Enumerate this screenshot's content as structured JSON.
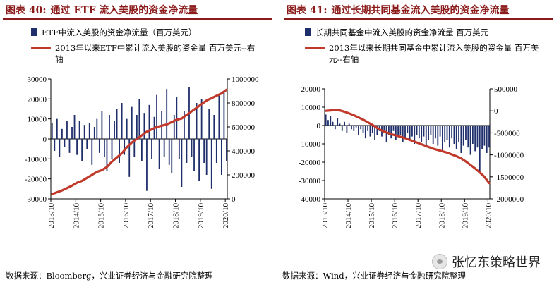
{
  "left": {
    "title_num": "图表 40:",
    "title": "通过 ETF 流入美股的资金净流量",
    "legend_bar": "ETF中流入美股的资金净流量（百万美元）",
    "legend_line": "2013年以来ETF中累计流入美股的资金量 百万美元--右轴",
    "source": "数据来源：Bloomberg，兴业证券经济与金融研究院整理"
  },
  "right": {
    "title_num": "图表 41:",
    "title": "通过长期共同基金流入美股的资金净流量",
    "legend_bar": "长期共同基金中流入美股的资金净流量 百万美元",
    "legend_line": "2013年以来长期共同基金中累计流入美股的资金量 百万美元--右轴",
    "source": "数据来源：Wind，兴业证券经济与金融研究院整理"
  },
  "watermark": {
    "text": "张忆东策略世界",
    "icon": "wechat-icon"
  },
  "colors": {
    "bar": "#1f2f6b",
    "line": "#c0392b",
    "title": "#8b1a1a"
  },
  "chart_data": [
    {
      "type": "bar+line",
      "title": "通过 ETF 流入美股的资金净流量",
      "x_ticks": [
        "2013/10",
        "2014/10",
        "2015/10",
        "2016/10",
        "2017/10",
        "2018/10",
        "2019/10",
        "2020/10"
      ],
      "x_range": [
        2013.75,
        2020.83
      ],
      "y_left": {
        "min": -30000,
        "max": 30000,
        "ticks": [
          -30000,
          -20000,
          -10000,
          0,
          10000,
          20000,
          30000
        ],
        "labels": [
          "-30000",
          "-20000",
          "-10000",
          "0",
          "10000",
          "20000",
          "30000"
        ]
      },
      "y_right": {
        "min": 0,
        "max": 1000000,
        "ticks": [
          0,
          200000,
          400000,
          600000,
          800000,
          1000000
        ],
        "labels": [
          "0",
          "200000",
          "400000",
          "600000",
          "800000",
          "1000000"
        ]
      },
      "grid": false,
      "legend_position": "top",
      "bar_series": {
        "name": "ETF中流入美股的资金净流量（百万美元）",
        "x": [
          2013.8,
          2013.9,
          2014.0,
          2014.1,
          2014.2,
          2014.3,
          2014.4,
          2014.5,
          2014.6,
          2014.7,
          2014.8,
          2014.9,
          2015.0,
          2015.1,
          2015.2,
          2015.3,
          2015.4,
          2015.5,
          2015.6,
          2015.7,
          2015.8,
          2015.9,
          2016.0,
          2016.1,
          2016.2,
          2016.3,
          2016.4,
          2016.5,
          2016.6,
          2016.7,
          2016.8,
          2016.9,
          2017.0,
          2017.1,
          2017.2,
          2017.3,
          2017.4,
          2017.5,
          2017.6,
          2017.7,
          2017.8,
          2017.9,
          2018.0,
          2018.1,
          2018.2,
          2018.3,
          2018.4,
          2018.5,
          2018.6,
          2018.7,
          2018.8,
          2018.9,
          2019.0,
          2019.1,
          2019.2,
          2019.3,
          2019.4,
          2019.5,
          2019.6,
          2019.7,
          2019.8,
          2019.9,
          2020.0,
          2020.1,
          2020.2,
          2020.3,
          2020.4,
          2020.5,
          2020.6,
          2020.7,
          2020.8
        ],
        "values": [
          8000,
          -6000,
          10000,
          -9000,
          5000,
          -4000,
          9000,
          -7000,
          6000,
          12000,
          -8000,
          9000,
          -11000,
          7000,
          -5000,
          8000,
          -13000,
          6000,
          10000,
          -7000,
          14000,
          -9000,
          -16000,
          12000,
          -10000,
          9000,
          15000,
          -12000,
          18000,
          -8000,
          10000,
          -19000,
          16000,
          -9000,
          12000,
          20000,
          -11000,
          13000,
          -26000,
          17000,
          -10000,
          11000,
          22000,
          -15000,
          14000,
          -9000,
          25000,
          -13000,
          -17000,
          12000,
          21000,
          -10000,
          -24000,
          14000,
          -12000,
          26000,
          -9000,
          -16000,
          18000,
          -21000,
          20000,
          -12000,
          -18000,
          15000,
          -25000,
          12000,
          -12000,
          22000,
          -18000,
          24000,
          -11000
        ]
      },
      "line_series": {
        "name": "2013年以来ETF中累计流入美股的资金量 百万美元--右轴",
        "x": [
          2013.8,
          2014.0,
          2014.2,
          2014.4,
          2014.6,
          2014.8,
          2015.0,
          2015.2,
          2015.4,
          2015.6,
          2015.8,
          2016.0,
          2016.2,
          2016.4,
          2016.6,
          2016.8,
          2017.0,
          2017.2,
          2017.4,
          2017.6,
          2017.8,
          2018.0,
          2018.2,
          2018.4,
          2018.6,
          2018.8,
          2019.0,
          2019.2,
          2019.4,
          2019.6,
          2019.8,
          2020.0,
          2020.2,
          2020.4,
          2020.6,
          2020.8
        ],
        "values": [
          40000,
          55000,
          70000,
          90000,
          110000,
          135000,
          150000,
          175000,
          200000,
          225000,
          240000,
          265000,
          310000,
          345000,
          380000,
          430000,
          470000,
          500000,
          530000,
          560000,
          580000,
          600000,
          610000,
          620000,
          640000,
          660000,
          670000,
          700000,
          730000,
          760000,
          790000,
          820000,
          840000,
          860000,
          880000,
          910000
        ]
      }
    },
    {
      "type": "bar+line",
      "title": "通过长期共同基金流入美股的资金净流量",
      "x_ticks": [
        "2013/10",
        "2014/10",
        "2015/10",
        "2016/10",
        "2017/10",
        "2018/10",
        "2019/10",
        "2020/10"
      ],
      "x_range": [
        2013.75,
        2020.83
      ],
      "y_left": {
        "min": -40000,
        "max": 20000,
        "ticks": [
          -40000,
          -30000,
          -20000,
          -10000,
          0,
          10000,
          20000
        ],
        "labels": [
          "-40000",
          "-30000",
          "-20000",
          "-10000",
          "0",
          "10000",
          "20000"
        ]
      },
      "y_right": {
        "min": -2000000,
        "max": 500000,
        "ticks": [
          -2000000,
          -1500000,
          -1000000,
          -500000,
          0,
          500000
        ],
        "labels": [
          "-2000000",
          "-1500000",
          "-1000000",
          "-500000",
          "0",
          "500000"
        ]
      },
      "grid": false,
      "legend_position": "top",
      "bar_series": {
        "name": "长期共同基金中流入美股的资金净流量 百万美元",
        "x": [
          2013.8,
          2013.9,
          2014.0,
          2014.1,
          2014.2,
          2014.3,
          2014.4,
          2014.5,
          2014.6,
          2014.7,
          2014.8,
          2014.9,
          2015.0,
          2015.1,
          2015.2,
          2015.3,
          2015.4,
          2015.5,
          2015.6,
          2015.7,
          2015.8,
          2015.9,
          2016.0,
          2016.1,
          2016.2,
          2016.3,
          2016.4,
          2016.5,
          2016.6,
          2016.7,
          2016.8,
          2016.9,
          2017.0,
          2017.1,
          2017.2,
          2017.3,
          2017.4,
          2017.5,
          2017.6,
          2017.7,
          2017.8,
          2017.9,
          2018.0,
          2018.1,
          2018.2,
          2018.3,
          2018.4,
          2018.5,
          2018.6,
          2018.7,
          2018.8,
          2018.9,
          2019.0,
          2019.1,
          2019.2,
          2019.3,
          2019.4,
          2019.5,
          2019.6,
          2019.7,
          2019.8,
          2019.9,
          2020.0,
          2020.1,
          2020.2,
          2020.3,
          2020.4,
          2020.5,
          2020.6,
          2020.7,
          2020.8
        ],
        "values": [
          6000,
          3000,
          5000,
          2000,
          -2000,
          4000,
          1000,
          -3000,
          2000,
          -4000,
          1000,
          -2000,
          -3000,
          -1000,
          -5000,
          -2000,
          -4000,
          -7000,
          -3000,
          -6000,
          -4000,
          -8000,
          -5000,
          -3000,
          -6000,
          -4000,
          -9000,
          -5000,
          -7000,
          -3000,
          -8000,
          -6000,
          -5000,
          -9000,
          -7000,
          -4000,
          -8000,
          -6000,
          -10000,
          -5000,
          -7000,
          -9000,
          -6000,
          -12000,
          -8000,
          -5000,
          -10000,
          -7000,
          -11000,
          -6000,
          -14000,
          -9000,
          -8000,
          -12000,
          -7000,
          -10000,
          -13000,
          -9000,
          -15000,
          -11000,
          -8000,
          -12000,
          -16000,
          -10000,
          -14000,
          -12000,
          -26000,
          -13000,
          -11000,
          -15000,
          -12000
        ]
      },
      "line_series": {
        "name": "2013年以来长期共同基金中累计流入美股的资金量 百万美元--右轴",
        "x": [
          2013.8,
          2014.0,
          2014.2,
          2014.4,
          2014.6,
          2014.8,
          2015.0,
          2015.2,
          2015.4,
          2015.6,
          2015.8,
          2016.0,
          2016.2,
          2016.4,
          2016.6,
          2016.8,
          2017.0,
          2017.2,
          2017.4,
          2017.6,
          2017.8,
          2018.0,
          2018.2,
          2018.4,
          2018.6,
          2018.8,
          2019.0,
          2019.2,
          2019.4,
          2019.6,
          2019.8,
          2020.0,
          2020.2,
          2020.4,
          2020.6,
          2020.8
        ],
        "values": [
          0,
          10000,
          20000,
          10000,
          -20000,
          -60000,
          -100000,
          -150000,
          -200000,
          -260000,
          -320000,
          -390000,
          -450000,
          -490000,
          -530000,
          -560000,
          -590000,
          -620000,
          -660000,
          -700000,
          -740000,
          -780000,
          -820000,
          -860000,
          -890000,
          -920000,
          -950000,
          -990000,
          -1030000,
          -1080000,
          -1150000,
          -1230000,
          -1310000,
          -1400000,
          -1500000,
          -1640000
        ]
      }
    }
  ]
}
